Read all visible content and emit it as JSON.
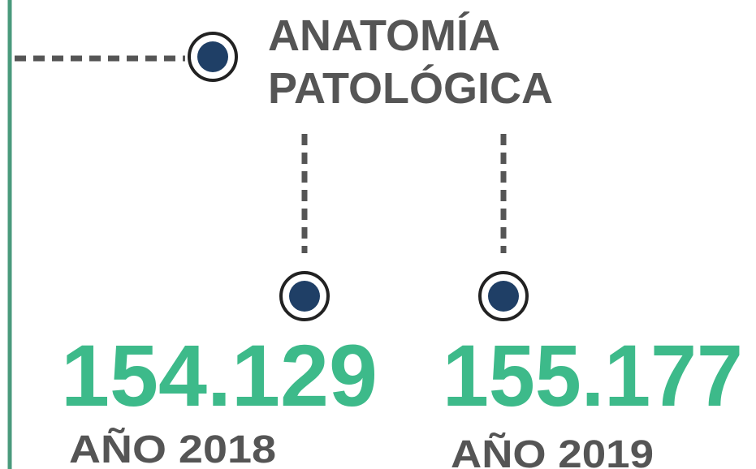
{
  "title": {
    "lines": [
      "ANATOMÍA",
      "PATOLÓGICA"
    ]
  },
  "stats": [
    {
      "value": "154.129",
      "label": "AÑO 2018"
    },
    {
      "value": "155.177",
      "label": "AÑO 2019"
    }
  ]
}
